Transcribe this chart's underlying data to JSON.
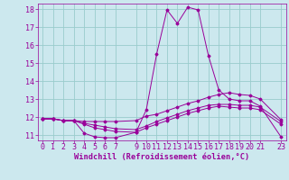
{
  "xlabel": "Windchill (Refroidissement éolien,°C)",
  "xlim": [
    -0.5,
    23.5
  ],
  "ylim": [
    10.7,
    18.3
  ],
  "yticks": [
    11,
    12,
    13,
    14,
    15,
    16,
    17,
    18
  ],
  "xticks": [
    0,
    1,
    2,
    3,
    4,
    5,
    6,
    7,
    9,
    10,
    11,
    12,
    13,
    14,
    15,
    16,
    17,
    18,
    19,
    20,
    21,
    23
  ],
  "bg_color": "#cce8ee",
  "line_color": "#990099",
  "grid_color": "#99cccc",
  "tick_fontsize": 6.0,
  "xlabel_fontsize": 6.2,
  "lines": [
    {
      "x": [
        0,
        1,
        2,
        3,
        4,
        5,
        6,
        7,
        9,
        10,
        11,
        12,
        13,
        14,
        15,
        16,
        17,
        18,
        19,
        20,
        21,
        23
      ],
      "y": [
        11.9,
        11.9,
        11.8,
        11.8,
        11.1,
        10.9,
        10.85,
        10.85,
        11.15,
        12.4,
        15.5,
        17.95,
        17.2,
        18.1,
        17.95,
        15.4,
        13.5,
        13.0,
        12.9,
        12.9,
        12.6,
        10.9
      ]
    },
    {
      "x": [
        0,
        1,
        2,
        3,
        4,
        5,
        6,
        7,
        9,
        10,
        11,
        12,
        13,
        14,
        15,
        16,
        17,
        18,
        19,
        20,
        21,
        23
      ],
      "y": [
        11.9,
        11.9,
        11.8,
        11.8,
        11.75,
        11.75,
        11.75,
        11.75,
        11.8,
        12.05,
        12.15,
        12.35,
        12.55,
        12.75,
        12.9,
        13.1,
        13.25,
        13.35,
        13.25,
        13.2,
        13.0,
        11.85
      ]
    },
    {
      "x": [
        0,
        1,
        2,
        3,
        4,
        5,
        6,
        7,
        9,
        10,
        11,
        12,
        13,
        14,
        15,
        16,
        17,
        18,
        19,
        20,
        21,
        23
      ],
      "y": [
        11.9,
        11.9,
        11.8,
        11.8,
        11.65,
        11.55,
        11.45,
        11.35,
        11.3,
        11.5,
        11.75,
        11.95,
        12.15,
        12.35,
        12.5,
        12.65,
        12.7,
        12.7,
        12.65,
        12.65,
        12.55,
        11.75
      ]
    },
    {
      "x": [
        0,
        1,
        2,
        3,
        4,
        5,
        6,
        7,
        9,
        10,
        11,
        12,
        13,
        14,
        15,
        16,
        17,
        18,
        19,
        20,
        21,
        23
      ],
      "y": [
        11.9,
        11.9,
        11.8,
        11.8,
        11.6,
        11.4,
        11.3,
        11.2,
        11.15,
        11.4,
        11.6,
        11.8,
        12.0,
        12.2,
        12.35,
        12.5,
        12.6,
        12.55,
        12.5,
        12.5,
        12.4,
        11.6
      ]
    }
  ]
}
